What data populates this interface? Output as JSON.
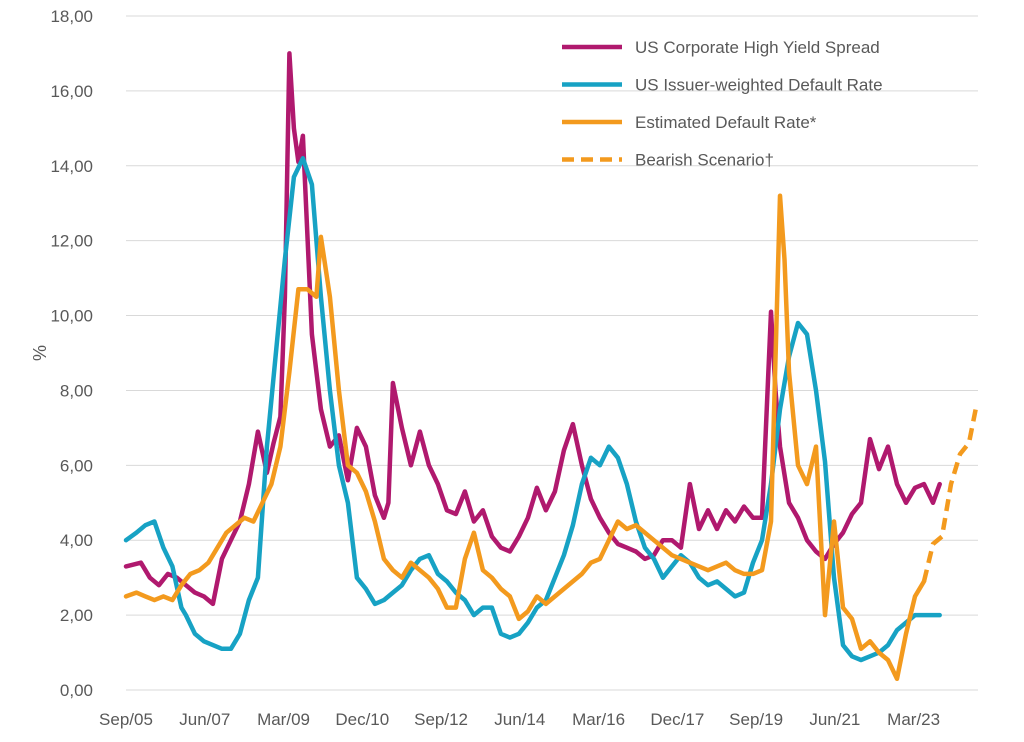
{
  "chart_data": {
    "type": "line",
    "title": "",
    "xlabel": "",
    "ylabel": "%",
    "ylim": [
      0,
      18
    ],
    "xlim": [
      2005.67,
      2024.6
    ],
    "grid": true,
    "legend_position": "top-right",
    "y_ticks": [
      0,
      2,
      4,
      6,
      8,
      10,
      12,
      14,
      16,
      18
    ],
    "y_tick_labels": [
      "0,00",
      "2,00",
      "4,00",
      "6,00",
      "8,00",
      "10,00",
      "12,00",
      "14,00",
      "16,00",
      "18,00"
    ],
    "x_ticks": [
      {
        "value": 2005.67,
        "label": "Sep/05"
      },
      {
        "value": 2007.42,
        "label": "Jun/07"
      },
      {
        "value": 2009.17,
        "label": "Mar/09"
      },
      {
        "value": 2010.92,
        "label": "Dec/10"
      },
      {
        "value": 2012.67,
        "label": "Sep/12"
      },
      {
        "value": 2014.42,
        "label": "Jun/14"
      },
      {
        "value": 2016.17,
        "label": "Mar/16"
      },
      {
        "value": 2017.92,
        "label": "Dec/17"
      },
      {
        "value": 2019.67,
        "label": "Sep/19"
      },
      {
        "value": 2021.42,
        "label": "Jun/21"
      },
      {
        "value": 2023.17,
        "label": "Mar/23"
      }
    ],
    "series": [
      {
        "name": "US Corporate High Yield Spread",
        "color": "#b0196e",
        "dash": false,
        "x": [
          2005.67,
          2006.0,
          2006.2,
          2006.4,
          2006.6,
          2006.8,
          2007.0,
          2007.2,
          2007.4,
          2007.6,
          2007.8,
          2008.0,
          2008.2,
          2008.4,
          2008.6,
          2008.8,
          2008.95,
          2009.1,
          2009.2,
          2009.3,
          2009.4,
          2009.5,
          2009.6,
          2009.8,
          2010.0,
          2010.2,
          2010.4,
          2010.6,
          2010.8,
          2011.0,
          2011.2,
          2011.4,
          2011.5,
          2011.6,
          2011.8,
          2012.0,
          2012.2,
          2012.4,
          2012.6,
          2012.8,
          2013.0,
          2013.2,
          2013.4,
          2013.6,
          2013.8,
          2014.0,
          2014.2,
          2014.4,
          2014.6,
          2014.8,
          2015.0,
          2015.2,
          2015.4,
          2015.6,
          2015.8,
          2016.0,
          2016.2,
          2016.4,
          2016.6,
          2016.8,
          2017.0,
          2017.2,
          2017.4,
          2017.6,
          2017.8,
          2018.0,
          2018.2,
          2018.4,
          2018.6,
          2018.8,
          2019.0,
          2019.2,
          2019.4,
          2019.6,
          2019.8,
          2020.0,
          2020.1,
          2020.2,
          2020.4,
          2020.6,
          2020.8,
          2021.0,
          2021.2,
          2021.4,
          2021.6,
          2021.8,
          2022.0,
          2022.2,
          2022.4,
          2022.6,
          2022.8,
          2023.0,
          2023.2,
          2023.4,
          2023.6,
          2023.75
        ],
        "values": [
          3.3,
          3.4,
          3.0,
          2.8,
          3.1,
          3.0,
          2.8,
          2.6,
          2.5,
          2.3,
          3.5,
          4.0,
          4.5,
          5.5,
          6.9,
          5.8,
          6.6,
          7.3,
          10.5,
          17.0,
          15.0,
          14.1,
          14.8,
          9.5,
          7.5,
          6.5,
          6.8,
          5.6,
          7.0,
          6.5,
          5.2,
          4.6,
          5.0,
          8.2,
          7.0,
          6.0,
          6.9,
          6.0,
          5.5,
          4.8,
          4.7,
          5.3,
          4.5,
          4.8,
          4.1,
          3.8,
          3.7,
          4.1,
          4.6,
          5.4,
          4.8,
          5.3,
          6.4,
          7.1,
          6.0,
          5.1,
          4.6,
          4.2,
          3.9,
          3.8,
          3.7,
          3.5,
          3.6,
          4.0,
          4.0,
          3.8,
          5.5,
          4.3,
          4.8,
          4.3,
          4.8,
          4.5,
          4.9,
          4.6,
          4.6,
          10.1,
          8.0,
          6.5,
          5.0,
          4.6,
          4.0,
          3.7,
          3.5,
          3.9,
          4.2,
          4.7,
          5.0,
          6.7,
          5.9,
          6.5,
          5.5,
          5.0,
          5.4,
          5.5,
          5.0,
          5.5
        ],
        "legend": true
      },
      {
        "name": "US Issuer-weighted Default Rate",
        "color": "#17a2c4",
        "dash": false,
        "x": [
          2005.67,
          2005.9,
          2006.1,
          2006.3,
          2006.5,
          2006.7,
          2006.9,
          2007.0,
          2007.2,
          2007.4,
          2007.6,
          2007.8,
          2008.0,
          2008.2,
          2008.4,
          2008.6,
          2008.8,
          2009.0,
          2009.2,
          2009.4,
          2009.6,
          2009.8,
          2010.0,
          2010.2,
          2010.4,
          2010.6,
          2010.8,
          2011.0,
          2011.2,
          2011.4,
          2011.6,
          2011.8,
          2012.0,
          2012.2,
          2012.4,
          2012.6,
          2012.8,
          2013.0,
          2013.2,
          2013.4,
          2013.6,
          2013.8,
          2014.0,
          2014.2,
          2014.4,
          2014.6,
          2014.8,
          2015.0,
          2015.2,
          2015.4,
          2015.6,
          2015.8,
          2016.0,
          2016.2,
          2016.4,
          2016.6,
          2016.8,
          2017.0,
          2017.2,
          2017.4,
          2017.6,
          2017.8,
          2018.0,
          2018.2,
          2018.4,
          2018.6,
          2018.8,
          2019.0,
          2019.2,
          2019.4,
          2019.6,
          2019.8,
          2020.0,
          2020.2,
          2020.4,
          2020.6,
          2020.8,
          2021.0,
          2021.2,
          2021.4,
          2021.6,
          2021.8,
          2022.0,
          2022.2,
          2022.4,
          2022.6,
          2022.8,
          2023.0,
          2023.2,
          2023.4,
          2023.6,
          2023.75
        ],
        "values": [
          4.0,
          4.2,
          4.4,
          4.5,
          3.8,
          3.3,
          2.2,
          2.0,
          1.5,
          1.3,
          1.2,
          1.1,
          1.1,
          1.5,
          2.4,
          3.0,
          6.5,
          9.0,
          11.5,
          13.7,
          14.2,
          13.5,
          10.5,
          8.0,
          6.0,
          5.0,
          3.0,
          2.7,
          2.3,
          2.4,
          2.6,
          2.8,
          3.2,
          3.5,
          3.6,
          3.1,
          2.9,
          2.6,
          2.4,
          2.0,
          2.2,
          2.2,
          1.5,
          1.4,
          1.5,
          1.8,
          2.2,
          2.4,
          3.0,
          3.6,
          4.4,
          5.5,
          6.2,
          6.0,
          6.5,
          6.2,
          5.5,
          4.5,
          3.8,
          3.5,
          3.0,
          3.3,
          3.6,
          3.4,
          3.0,
          2.8,
          2.9,
          2.7,
          2.5,
          2.6,
          3.4,
          4.0,
          5.5,
          7.5,
          8.9,
          9.8,
          9.5,
          8.0,
          6.1,
          3.0,
          1.2,
          0.9,
          0.8,
          0.9,
          1.0,
          1.2,
          1.6,
          1.8,
          2.0,
          2.0,
          2.0,
          2.0
        ],
        "legend": true
      },
      {
        "name": "Estimated Default Rate*",
        "color": "#f39a1e",
        "dash": false,
        "x": [
          2005.67,
          2005.9,
          2006.1,
          2006.3,
          2006.5,
          2006.7,
          2006.9,
          2007.1,
          2007.3,
          2007.5,
          2007.7,
          2007.9,
          2008.1,
          2008.3,
          2008.5,
          2008.7,
          2008.9,
          2009.1,
          2009.3,
          2009.5,
          2009.7,
          2009.9,
          2010.0,
          2010.2,
          2010.4,
          2010.6,
          2010.8,
          2011.0,
          2011.2,
          2011.4,
          2011.6,
          2011.8,
          2012.0,
          2012.2,
          2012.4,
          2012.6,
          2012.8,
          2013.0,
          2013.2,
          2013.4,
          2013.6,
          2013.8,
          2014.0,
          2014.2,
          2014.4,
          2014.6,
          2014.8,
          2015.0,
          2015.2,
          2015.4,
          2015.6,
          2015.8,
          2016.0,
          2016.2,
          2016.4,
          2016.6,
          2016.8,
          2017.0,
          2017.2,
          2017.4,
          2017.6,
          2017.8,
          2018.0,
          2018.2,
          2018.4,
          2018.6,
          2018.8,
          2019.0,
          2019.2,
          2019.4,
          2019.6,
          2019.8,
          2020.0,
          2020.2,
          2020.3,
          2020.4,
          2020.6,
          2020.8,
          2021.0,
          2021.2,
          2021.4,
          2021.6,
          2021.8,
          2022.0,
          2022.2,
          2022.4,
          2022.6,
          2022.8,
          2023.0,
          2023.2,
          2023.4
        ],
        "values": [
          2.5,
          2.6,
          2.5,
          2.4,
          2.5,
          2.4,
          2.8,
          3.1,
          3.2,
          3.4,
          3.8,
          4.2,
          4.4,
          4.6,
          4.5,
          5.0,
          5.5,
          6.5,
          8.5,
          10.7,
          10.7,
          10.5,
          12.1,
          10.5,
          8.0,
          6.0,
          5.8,
          5.3,
          4.5,
          3.5,
          3.2,
          3.0,
          3.4,
          3.2,
          3.0,
          2.7,
          2.2,
          2.2,
          3.5,
          4.2,
          3.2,
          3.0,
          2.7,
          2.5,
          1.9,
          2.1,
          2.5,
          2.3,
          2.5,
          2.7,
          2.9,
          3.1,
          3.4,
          3.5,
          4.0,
          4.5,
          4.3,
          4.4,
          4.2,
          4.0,
          3.8,
          3.6,
          3.5,
          3.4,
          3.3,
          3.2,
          3.3,
          3.4,
          3.2,
          3.1,
          3.1,
          3.2,
          4.5,
          13.2,
          11.5,
          8.5,
          6.0,
          5.5,
          6.5,
          2.0,
          4.5,
          2.2,
          1.9,
          1.1,
          1.3,
          1.0,
          0.8,
          0.3,
          1.5,
          2.5,
          2.9
        ],
        "legend": true
      },
      {
        "name": "Bearish Scenario†",
        "color": "#f39a1e",
        "dash": true,
        "x": [
          2023.4,
          2023.6,
          2023.8,
          2024.0,
          2024.2,
          2024.4,
          2024.55
        ],
        "values": [
          2.9,
          3.9,
          4.1,
          5.5,
          6.3,
          6.6,
          7.5
        ],
        "legend": true
      }
    ]
  }
}
